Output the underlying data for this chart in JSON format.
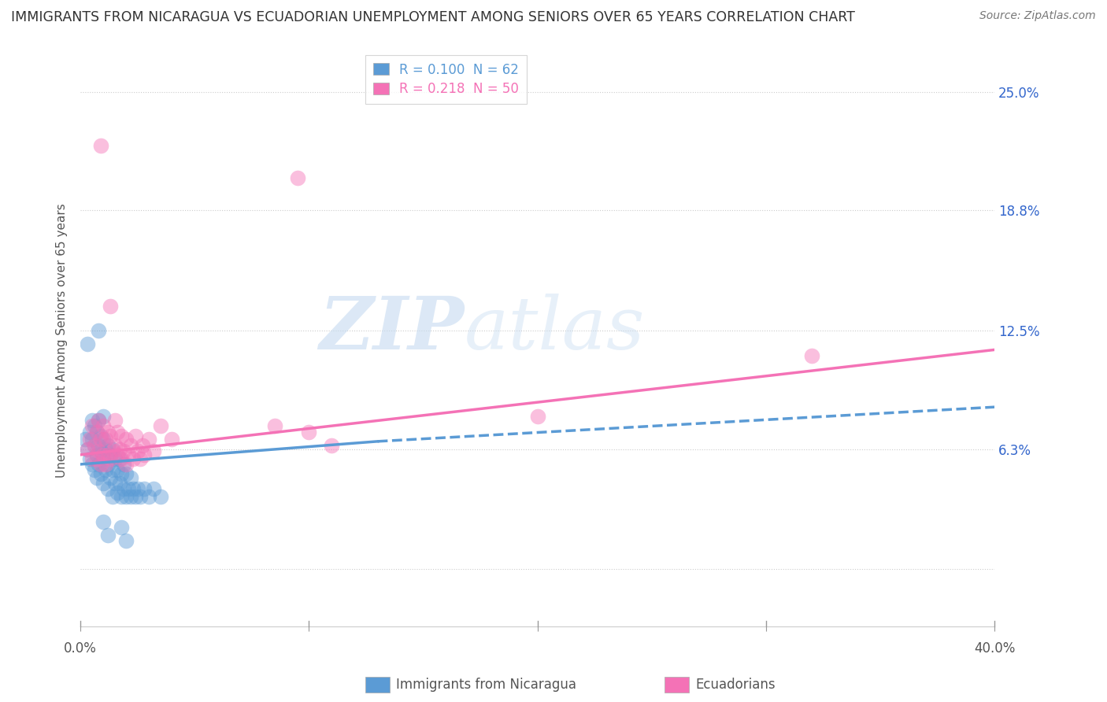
{
  "title": "IMMIGRANTS FROM NICARAGUA VS ECUADORIAN UNEMPLOYMENT AMONG SENIORS OVER 65 YEARS CORRELATION CHART",
  "source": "Source: ZipAtlas.com",
  "ylabel": "Unemployment Among Seniors over 65 years",
  "xlim": [
    0.0,
    0.4
  ],
  "ylim": [
    -0.03,
    0.27
  ],
  "yticks": [
    0.0,
    0.063,
    0.125,
    0.188,
    0.25
  ],
  "ytick_labels": [
    "",
    "6.3%",
    "12.5%",
    "18.8%",
    "25.0%"
  ],
  "legend_entries": [
    {
      "label": "R = 0.100  N = 62",
      "color": "#5b9bd5"
    },
    {
      "label": "R = 0.218  N = 50",
      "color": "#f472b6"
    }
  ],
  "blue_color": "#5b9bd5",
  "pink_color": "#f472b6",
  "blue_scatter": [
    [
      0.002,
      0.068
    ],
    [
      0.003,
      0.063
    ],
    [
      0.004,
      0.058
    ],
    [
      0.004,
      0.072
    ],
    [
      0.005,
      0.055
    ],
    [
      0.005,
      0.068
    ],
    [
      0.005,
      0.078
    ],
    [
      0.006,
      0.052
    ],
    [
      0.006,
      0.065
    ],
    [
      0.006,
      0.075
    ],
    [
      0.007,
      0.048
    ],
    [
      0.007,
      0.06
    ],
    [
      0.007,
      0.072
    ],
    [
      0.008,
      0.055
    ],
    [
      0.008,
      0.065
    ],
    [
      0.008,
      0.078
    ],
    [
      0.009,
      0.05
    ],
    [
      0.009,
      0.062
    ],
    [
      0.009,
      0.07
    ],
    [
      0.01,
      0.045
    ],
    [
      0.01,
      0.058
    ],
    [
      0.01,
      0.068
    ],
    [
      0.01,
      0.08
    ],
    [
      0.011,
      0.052
    ],
    [
      0.011,
      0.063
    ],
    [
      0.012,
      0.042
    ],
    [
      0.012,
      0.055
    ],
    [
      0.012,
      0.065
    ],
    [
      0.013,
      0.048
    ],
    [
      0.013,
      0.06
    ],
    [
      0.014,
      0.038
    ],
    [
      0.014,
      0.052
    ],
    [
      0.014,
      0.063
    ],
    [
      0.015,
      0.045
    ],
    [
      0.015,
      0.058
    ],
    [
      0.016,
      0.04
    ],
    [
      0.016,
      0.052
    ],
    [
      0.017,
      0.045
    ],
    [
      0.017,
      0.058
    ],
    [
      0.018,
      0.038
    ],
    [
      0.018,
      0.05
    ],
    [
      0.019,
      0.042
    ],
    [
      0.019,
      0.055
    ],
    [
      0.02,
      0.038
    ],
    [
      0.02,
      0.05
    ],
    [
      0.021,
      0.042
    ],
    [
      0.022,
      0.038
    ],
    [
      0.022,
      0.048
    ],
    [
      0.023,
      0.042
    ],
    [
      0.024,
      0.038
    ],
    [
      0.025,
      0.042
    ],
    [
      0.026,
      0.038
    ],
    [
      0.028,
      0.042
    ],
    [
      0.03,
      0.038
    ],
    [
      0.032,
      0.042
    ],
    [
      0.035,
      0.038
    ],
    [
      0.003,
      0.118
    ],
    [
      0.008,
      0.125
    ],
    [
      0.01,
      0.025
    ],
    [
      0.012,
      0.018
    ],
    [
      0.018,
      0.022
    ],
    [
      0.02,
      0.015
    ]
  ],
  "pink_scatter": [
    [
      0.003,
      0.063
    ],
    [
      0.004,
      0.068
    ],
    [
      0.005,
      0.058
    ],
    [
      0.005,
      0.075
    ],
    [
      0.006,
      0.065
    ],
    [
      0.007,
      0.058
    ],
    [
      0.007,
      0.072
    ],
    [
      0.008,
      0.062
    ],
    [
      0.008,
      0.078
    ],
    [
      0.009,
      0.055
    ],
    [
      0.009,
      0.068
    ],
    [
      0.01,
      0.06
    ],
    [
      0.01,
      0.075
    ],
    [
      0.011,
      0.055
    ],
    [
      0.011,
      0.068
    ],
    [
      0.012,
      0.06
    ],
    [
      0.012,
      0.072
    ],
    [
      0.013,
      0.058
    ],
    [
      0.013,
      0.07
    ],
    [
      0.014,
      0.062
    ],
    [
      0.015,
      0.065
    ],
    [
      0.015,
      0.078
    ],
    [
      0.016,
      0.06
    ],
    [
      0.016,
      0.072
    ],
    [
      0.017,
      0.063
    ],
    [
      0.018,
      0.058
    ],
    [
      0.018,
      0.07
    ],
    [
      0.019,
      0.062
    ],
    [
      0.02,
      0.055
    ],
    [
      0.02,
      0.068
    ],
    [
      0.021,
      0.06
    ],
    [
      0.022,
      0.065
    ],
    [
      0.023,
      0.058
    ],
    [
      0.024,
      0.07
    ],
    [
      0.025,
      0.062
    ],
    [
      0.026,
      0.058
    ],
    [
      0.027,
      0.065
    ],
    [
      0.028,
      0.06
    ],
    [
      0.03,
      0.068
    ],
    [
      0.032,
      0.062
    ],
    [
      0.035,
      0.075
    ],
    [
      0.04,
      0.068
    ],
    [
      0.085,
      0.075
    ],
    [
      0.1,
      0.072
    ],
    [
      0.11,
      0.065
    ],
    [
      0.013,
      0.138
    ],
    [
      0.2,
      0.08
    ],
    [
      0.009,
      0.222
    ],
    [
      0.095,
      0.205
    ],
    [
      0.32,
      0.112
    ]
  ],
  "blue_trend_solid": {
    "x_start": 0.0,
    "x_end": 0.13,
    "y_start": 0.055,
    "y_end": 0.067
  },
  "blue_trend_dashed": {
    "x_start": 0.13,
    "x_end": 0.4,
    "y_start": 0.067,
    "y_end": 0.085
  },
  "pink_trend": {
    "x_start": 0.0,
    "x_end": 0.4,
    "y_start": 0.06,
    "y_end": 0.115
  }
}
